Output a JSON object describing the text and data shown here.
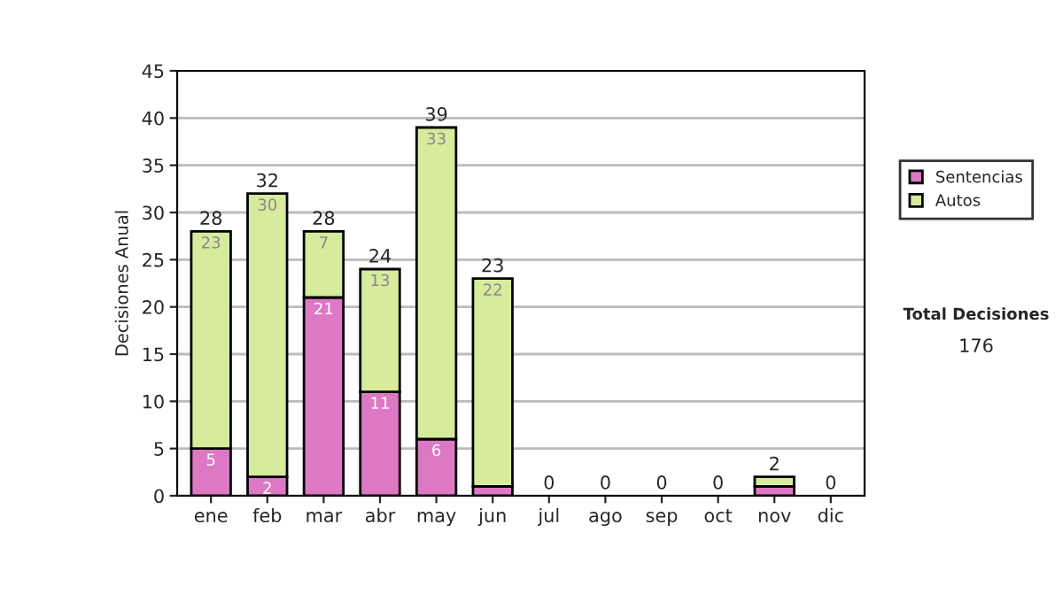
{
  "chart_data": {
    "type": "bar",
    "stacked": true,
    "ylabel": "Decisiones Anual",
    "categories": [
      "ene",
      "feb",
      "mar",
      "abr",
      "may",
      "jun",
      "jul",
      "ago",
      "sep",
      "oct",
      "nov",
      "dic"
    ],
    "series": [
      {
        "name": "Sentencias",
        "color": "#dc78c4",
        "values": [
          5,
          2,
          21,
          11,
          6,
          1,
          0,
          0,
          0,
          0,
          1,
          0
        ],
        "value_labels": [
          "5",
          "2",
          "21",
          "11",
          "6",
          null,
          null,
          null,
          null,
          null,
          null,
          null
        ]
      },
      {
        "name": "Autos",
        "color": "#d6eb9c",
        "values": [
          23,
          30,
          7,
          13,
          33,
          22,
          0,
          0,
          0,
          0,
          1,
          0
        ],
        "value_labels": [
          "23",
          "30",
          "7",
          "13",
          "33",
          "22",
          null,
          null,
          null,
          null,
          null,
          null
        ]
      }
    ],
    "totals": [
      "28",
      "32",
      "28",
      "24",
      "39",
      "23",
      "0",
      "0",
      "0",
      "0",
      "2",
      "0"
    ],
    "ylim": [
      0,
      45
    ],
    "yticks": [
      0,
      5,
      10,
      15,
      20,
      25,
      30,
      35,
      40,
      45
    ],
    "grid": "y",
    "legend": "right",
    "annotations": [
      "Total Decisiones",
      "176"
    ]
  }
}
